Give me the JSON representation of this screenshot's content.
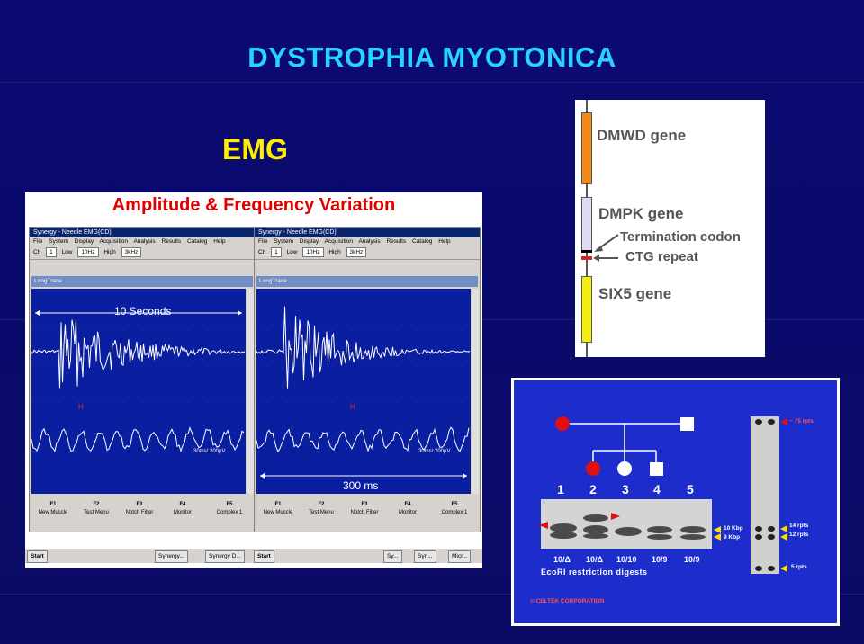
{
  "slide": {
    "title": "DYSTROPHIA MYOTONICA",
    "subtitle": "EMG"
  },
  "emg": {
    "heading": "Amplitude & Frequency Variation",
    "window_title": "Synergy - Needle EMG(CD)",
    "menu": [
      "File",
      "System",
      "Display",
      "Acquisition",
      "Analysis",
      "Results",
      "Catalog",
      "Help"
    ],
    "toolbar": {
      "ch_label": "Ch",
      "ch_value": "1",
      "low_label": "Low",
      "low_value": "10Hz",
      "high_label": "High",
      "high_value": "3kHz"
    },
    "trace_label": "LongTrace",
    "left_span": "10 Seconds",
    "right_span": "300 ms",
    "scale_left": "30ms/ 200µV",
    "scale_right": "30ms/ 200µV",
    "fkeys": [
      {
        "key": "F1",
        "label": "New Muscle"
      },
      {
        "key": "F2",
        "label": "Test Menu"
      },
      {
        "key": "F3",
        "label": "Notch Filter"
      },
      {
        "key": "F4",
        "label": "Monitor"
      },
      {
        "key": "F5",
        "label": "Complex 1"
      }
    ],
    "taskbar": {
      "start": "Start",
      "left_items": [
        "Synergy...",
        "Synergy D..."
      ],
      "right_items": [
        "Sy...",
        "Syn...",
        "Micr..."
      ]
    }
  },
  "gene_map": {
    "labels": [
      "DMWD gene",
      "DMPK gene",
      "Termination codon",
      "CTG repeat",
      "SIX5 gene"
    ],
    "colors": {
      "dmwd": "#f28a1a",
      "dmpk": "#dcdcf4",
      "six5": "#f4ee10",
      "repeat": "#e02020"
    }
  },
  "blot": {
    "lanes": [
      "1",
      "2",
      "3",
      "4",
      "5"
    ],
    "genotypes": [
      "10/Δ",
      "10/Δ",
      "10/10",
      "10/9",
      "10/9"
    ],
    "digest": "EcoRI restriction digests",
    "size_labels": [
      "10 Kbp",
      "9 Kbp"
    ],
    "repeat_labels": [
      "~ 75 rpts",
      "14 rpts",
      "12 rpts",
      "5 rpts"
    ],
    "copyright": "© CELTEK CORPORATION"
  }
}
